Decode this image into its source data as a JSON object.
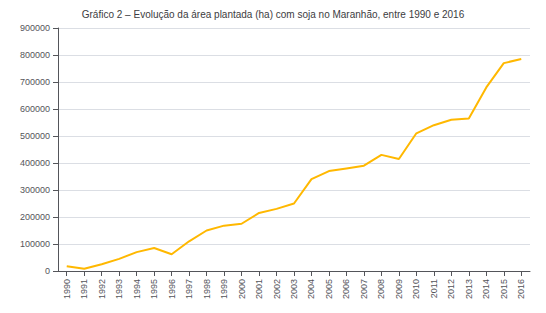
{
  "chart_data": {
    "type": "line",
    "title": "Gráfico 2 – Evolução da área plantada (ha) com soja no Maranhão, entre 1990 e 2016",
    "x": [
      1990,
      1991,
      1992,
      1993,
      1994,
      1995,
      1996,
      1997,
      1998,
      1999,
      2000,
      2001,
      2002,
      2003,
      2004,
      2005,
      2006,
      2007,
      2008,
      2009,
      2010,
      2011,
      2012,
      2013,
      2014,
      2015,
      2016
    ],
    "values": [
      18000,
      8000,
      25000,
      45000,
      70000,
      85000,
      62000,
      110000,
      150000,
      168000,
      175000,
      215000,
      230000,
      250000,
      340000,
      370000,
      380000,
      390000,
      430000,
      415000,
      510000,
      540000,
      560000,
      565000,
      680000,
      770000,
      785000
    ],
    "color": "#FFB800",
    "xlim": [
      1989.5,
      2016.5
    ],
    "xticks": [
      1990,
      1991,
      1992,
      1993,
      1994,
      1995,
      1996,
      1997,
      1998,
      1999,
      2000,
      2001,
      2002,
      2003,
      2004,
      2005,
      2006,
      2007,
      2008,
      2009,
      2010,
      2011,
      2012,
      2013,
      2014,
      2015,
      2016
    ],
    "ylim": [
      0,
      900000
    ],
    "yticks": [
      0,
      100000,
      200000,
      300000,
      400000,
      500000,
      600000,
      700000,
      800000,
      900000
    ],
    "grid": true
  }
}
